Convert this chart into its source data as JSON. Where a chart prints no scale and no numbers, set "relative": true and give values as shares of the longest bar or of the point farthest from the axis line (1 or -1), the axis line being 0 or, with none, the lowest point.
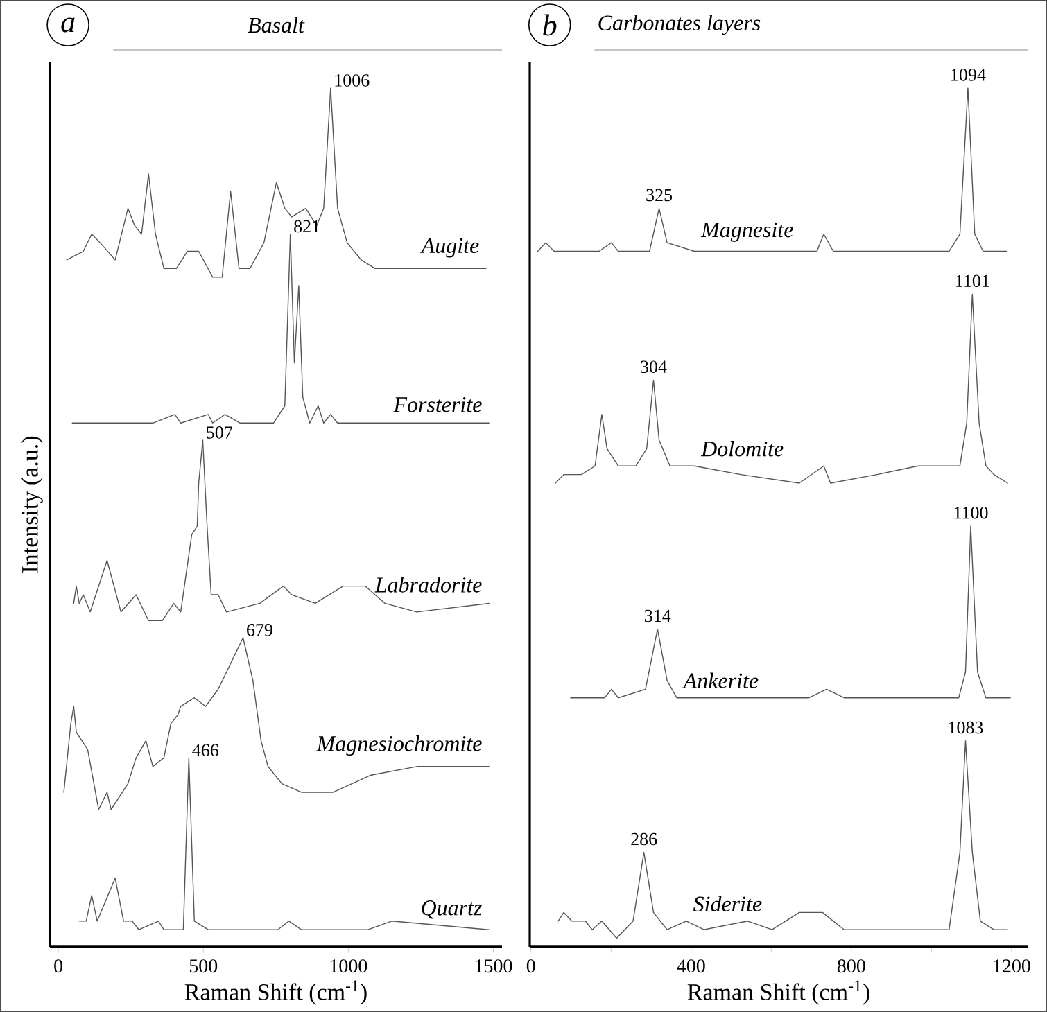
{
  "chart_data": [
    {
      "type": "line",
      "relative": true,
      "title": "Basalt",
      "xlabel": "Raman Shift (cm$^{-1}$)",
      "ylabel": "Intensity (a.u.)",
      "xlim": [
        -29,
        1530
      ],
      "xticks": [
        0,
        500,
        1000,
        1500
      ],
      "annotations": [
        "a",
        {
          "text": "1006",
          "x": 939,
          "y": 1.0
        },
        {
          "text": "821",
          "x": 800,
          "y": 0.83
        },
        {
          "text": "507",
          "x": 498,
          "y": 0.59
        },
        {
          "text": "679",
          "x": 637,
          "y": 0.36
        },
        {
          "text": "466",
          "x": 450,
          "y": 0.22
        }
      ],
      "series": [
        {
          "name": "Augite",
          "color": "#555555",
          "x": [
            29,
            86,
            115,
            144,
            196,
            240,
            263,
            287,
            311,
            335,
            364,
            407,
            445,
            484,
            532,
            565,
            594,
            623,
            661,
            709,
            752,
            781,
            805,
            853,
            891,
            915,
            939,
            963,
            996,
            1044,
            1092,
            1236,
            1394,
            1475
          ],
          "values": [
            0.8,
            0.81,
            0.83,
            0.82,
            0.8,
            0.86,
            0.84,
            0.83,
            0.9,
            0.83,
            0.79,
            0.79,
            0.81,
            0.81,
            0.78,
            0.78,
            0.88,
            0.79,
            0.79,
            0.82,
            0.89,
            0.86,
            0.85,
            0.86,
            0.84,
            0.86,
            1.0,
            0.86,
            0.82,
            0.8,
            0.79,
            0.79,
            0.79,
            0.79
          ]
        },
        {
          "name": "Forsterite",
          "color": "#555555",
          "x": [
            48,
            196,
            278,
            326,
            402,
            422,
            517,
            532,
            575,
            627,
            742,
            781,
            800,
            814,
            829,
            843,
            867,
            896,
            915,
            939,
            963,
            1154,
            1485
          ],
          "values": [
            0.61,
            0.61,
            0.61,
            0.61,
            0.62,
            0.61,
            0.62,
            0.61,
            0.62,
            0.61,
            0.61,
            0.63,
            0.83,
            0.68,
            0.77,
            0.64,
            0.61,
            0.63,
            0.61,
            0.62,
            0.61,
            0.61,
            0.61
          ]
        },
        {
          "name": "Labradorite",
          "color": "#555555",
          "x": [
            53,
            62,
            72,
            86,
            110,
            168,
            216,
            268,
            311,
            359,
            398,
            422,
            460,
            479,
            484,
            498,
            513,
            527,
            551,
            580,
            695,
            776,
            805,
            886,
            982,
            1059,
            1126,
            1236,
            1485
          ],
          "values": [
            0.4,
            0.42,
            0.4,
            0.41,
            0.39,
            0.45,
            0.39,
            0.41,
            0.38,
            0.38,
            0.4,
            0.39,
            0.48,
            0.49,
            0.54,
            0.59,
            0.49,
            0.41,
            0.41,
            0.39,
            0.4,
            0.42,
            0.41,
            0.4,
            0.42,
            0.42,
            0.4,
            0.39,
            0.4
          ]
        },
        {
          "name": "Magnesiochromite",
          "color": "#555555",
          "x": [
            19,
            43,
            53,
            62,
            101,
            139,
            168,
            182,
            240,
            268,
            302,
            326,
            364,
            388,
            412,
            422,
            469,
            508,
            551,
            580,
            637,
            671,
            699,
            723,
            771,
            838,
            948,
            1078,
            1236,
            1394,
            1485
          ],
          "values": [
            0.18,
            0.26,
            0.28,
            0.25,
            0.23,
            0.16,
            0.18,
            0.16,
            0.19,
            0.22,
            0.24,
            0.21,
            0.22,
            0.26,
            0.27,
            0.28,
            0.29,
            0.28,
            0.3,
            0.32,
            0.36,
            0.31,
            0.24,
            0.21,
            0.19,
            0.18,
            0.18,
            0.2,
            0.21,
            0.21,
            0.21
          ]
        },
        {
          "name": "Quartz",
          "color": "#555555",
          "x": [
            72,
            96,
            115,
            134,
            196,
            225,
            254,
            278,
            345,
            364,
            431,
            450,
            469,
            517,
            757,
            795,
            838,
            1068,
            1150,
            1485
          ],
          "values": [
            0.03,
            0.03,
            0.06,
            0.03,
            0.08,
            0.03,
            0.03,
            0.02,
            0.03,
            0.02,
            0.02,
            0.22,
            0.03,
            0.02,
            0.02,
            0.03,
            0.02,
            0.02,
            0.03,
            0.02
          ]
        }
      ]
    },
    {
      "type": "line",
      "relative": true,
      "title": "Carbonates layers",
      "xlabel": "Raman Shift (cm$^{-1}$)",
      "xlim": [
        -3,
        1240
      ],
      "xticks": [
        0,
        {
          "value": 200,
          "label": null
        },
        400,
        {
          "value": 600,
          "label": null
        },
        800,
        {
          "value": 1000,
          "label": null
        },
        1200
      ],
      "annotations": [
        "b",
        {
          "text": "1094",
          "x": 1091,
          "y": 1.0
        },
        {
          "text": "325",
          "x": 320,
          "y": 0.86
        },
        {
          "text": "1101",
          "x": 1102,
          "y": 0.76
        },
        {
          "text": "304",
          "x": 306,
          "y": 0.66
        },
        {
          "text": "1100",
          "x": 1098,
          "y": 0.49
        },
        {
          "text": "314",
          "x": 316,
          "y": 0.37
        },
        {
          "text": "1083",
          "x": 1085,
          "y": 0.24
        },
        {
          "text": "286",
          "x": 282,
          "y": 0.11
        }
      ],
      "series": [
        {
          "name": "Magnesite",
          "color": "#555555",
          "x": [
            17,
            37,
            58,
            170,
            201,
            218,
            296,
            320,
            340,
            408,
            714,
            731,
            755,
            1044,
            1071,
            1091,
            1108,
            1129,
            1187
          ],
          "values": [
            0.81,
            0.82,
            0.81,
            0.81,
            0.82,
            0.81,
            0.81,
            0.86,
            0.82,
            0.81,
            0.81,
            0.83,
            0.81,
            0.81,
            0.83,
            1.0,
            0.83,
            0.81,
            0.81
          ]
        },
        {
          "name": "Dolomite",
          "color": "#555555",
          "x": [
            61,
            82,
            126,
            160,
            177,
            190,
            218,
            262,
            289,
            306,
            320,
            347,
            408,
            524,
            670,
            731,
            748,
            864,
            966,
            1071,
            1088,
            1102,
            1119,
            1136,
            1156,
            1190
          ],
          "values": [
            0.54,
            0.55,
            0.55,
            0.56,
            0.62,
            0.58,
            0.56,
            0.56,
            0.58,
            0.66,
            0.59,
            0.56,
            0.56,
            0.55,
            0.54,
            0.56,
            0.54,
            0.55,
            0.56,
            0.56,
            0.61,
            0.76,
            0.61,
            0.56,
            0.55,
            0.54
          ]
        },
        {
          "name": "Ankerite",
          "color": "#555555",
          "x": [
            99,
            184,
            201,
            218,
            286,
            316,
            340,
            364,
            524,
            694,
            738,
            782,
            976,
            1068,
            1085,
            1098,
            1115,
            1136,
            1197
          ],
          "values": [
            0.29,
            0.29,
            0.3,
            0.29,
            0.3,
            0.37,
            0.31,
            0.29,
            0.29,
            0.29,
            0.3,
            0.29,
            0.29,
            0.29,
            0.32,
            0.49,
            0.32,
            0.29,
            0.29
          ]
        },
        {
          "name": "Siderite",
          "color": "#555555",
          "x": [
            68,
            82,
            102,
            136,
            153,
            177,
            214,
            255,
            282,
            306,
            340,
            388,
            432,
            541,
            602,
            670,
            728,
            782,
            864,
            1044,
            1071,
            1085,
            1102,
            1122,
            1156,
            1190
          ],
          "values": [
            0.03,
            0.04,
            0.03,
            0.03,
            0.02,
            0.03,
            0.01,
            0.03,
            0.11,
            0.04,
            0.02,
            0.03,
            0.02,
            0.03,
            0.02,
            0.04,
            0.04,
            0.02,
            0.02,
            0.02,
            0.11,
            0.24,
            0.11,
            0.03,
            0.02,
            0.02
          ]
        }
      ]
    }
  ]
}
